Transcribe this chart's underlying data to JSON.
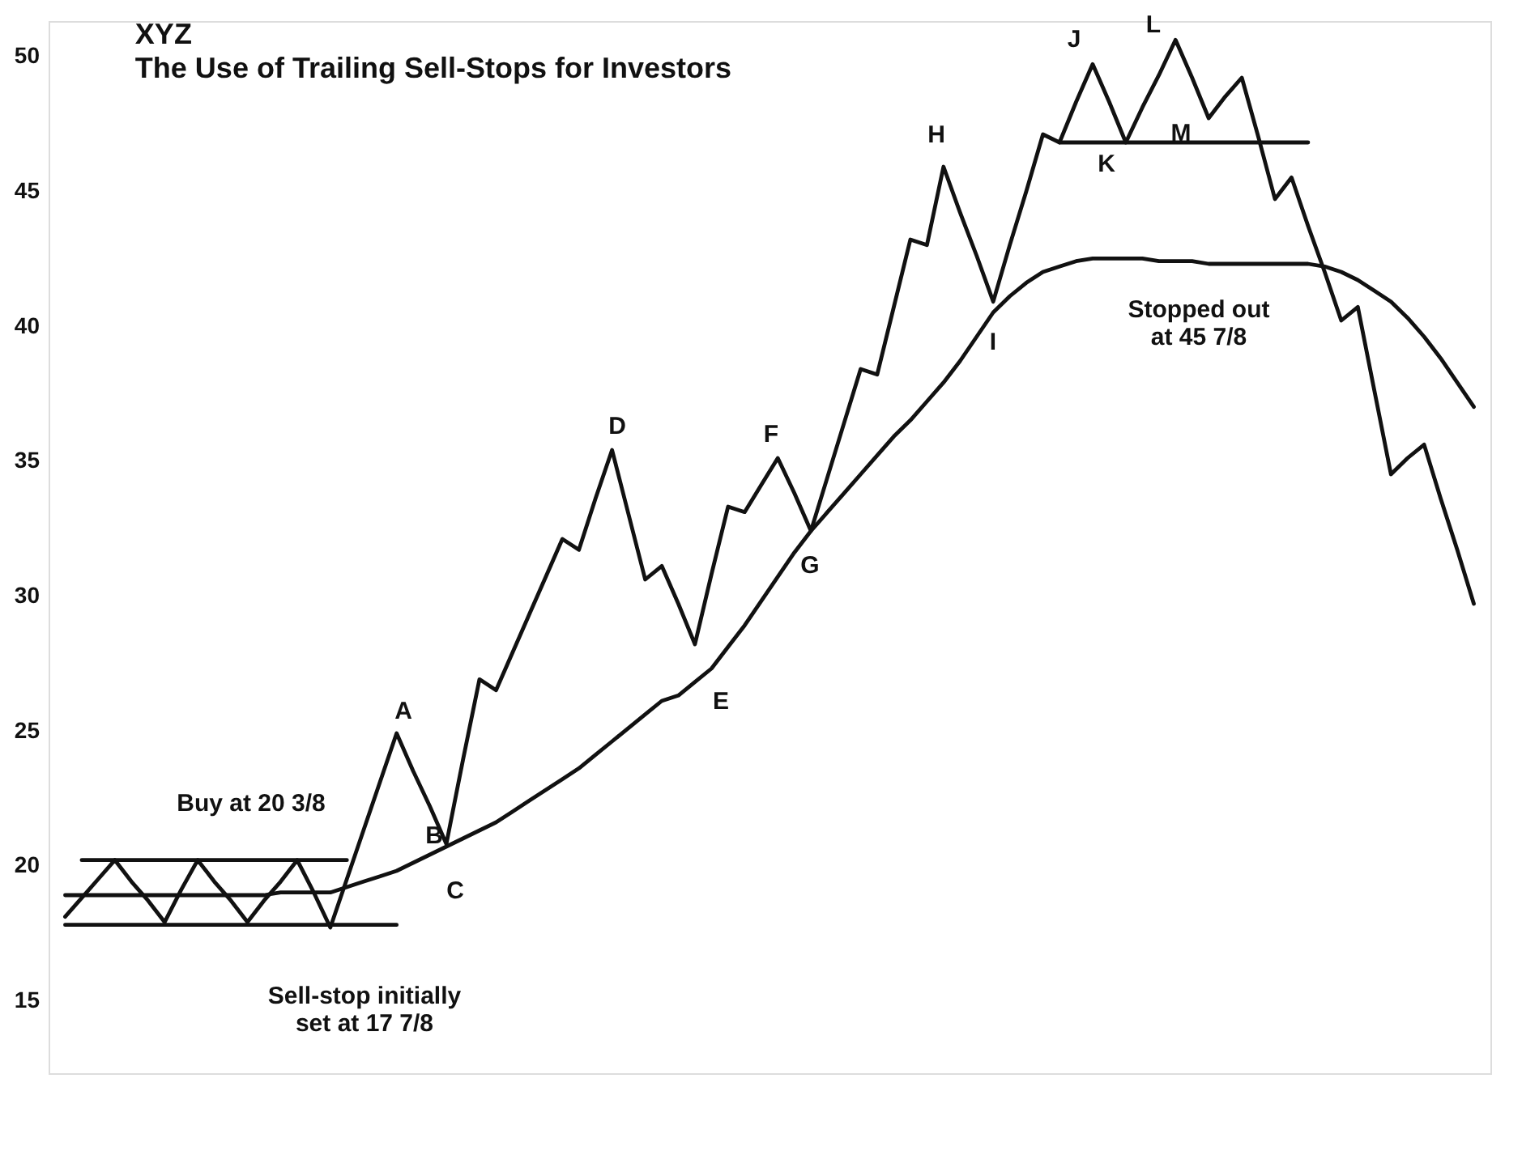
{
  "chart_data": {
    "type": "line",
    "title": "XYZ",
    "subtitle": "The Use of Trailing Sell-Stops for Investors",
    "categories": [
      null,
      null,
      null,
      null,
      null,
      null,
      null,
      null,
      null,
      null,
      null,
      null,
      null,
      null,
      null,
      null,
      null,
      null,
      null,
      null,
      null,
      null,
      null,
      null,
      null,
      null,
      null,
      null,
      null,
      null,
      null,
      null,
      null,
      null,
      null,
      null,
      null,
      null,
      null,
      null,
      null,
      null,
      null,
      null,
      null,
      null,
      null,
      null,
      null,
      null,
      null,
      null,
      null,
      null,
      null,
      null,
      null,
      null,
      null,
      null,
      null,
      null,
      null,
      null,
      null,
      null,
      null,
      null,
      null,
      null,
      null,
      null,
      null,
      null,
      null,
      null,
      null,
      null,
      null,
      null,
      null,
      null,
      null,
      null,
      null,
      null
    ],
    "ylim": [
      12.3,
      51.3
    ],
    "yticks": [
      15,
      20,
      25,
      30,
      35,
      40,
      45,
      50
    ],
    "tick_labels": "y",
    "grid": false,
    "marker": "none",
    "line_style": "solid",
    "series": [
      {
        "color": "#111111",
        "values": [
          18.1,
          18.8,
          19.5,
          20.2,
          19.4,
          18.7,
          17.9,
          19.1,
          20.2,
          19.4,
          18.7,
          17.9,
          18.7,
          19.4,
          20.2,
          19.0,
          17.7,
          19.5,
          21.3,
          23.1,
          24.9,
          23.5,
          22.2,
          20.8,
          23.9,
          26.9,
          26.5,
          27.9,
          29.3,
          30.7,
          32.1,
          31.7,
          33.6,
          35.4,
          33.0,
          30.6,
          31.1,
          29.7,
          28.2,
          30.8,
          33.3,
          33.1,
          34.1,
          35.1,
          33.8,
          32.4,
          34.4,
          36.4,
          38.4,
          38.2,
          40.7,
          43.2,
          43.0,
          45.9,
          44.2,
          42.6,
          40.9,
          43.0,
          45.0,
          47.1,
          46.8,
          48.3,
          49.7,
          48.3,
          46.8,
          48.1,
          49.3,
          50.6,
          49.2,
          47.7,
          48.5,
          49.2,
          47.0,
          44.7,
          45.5,
          43.7,
          42.0,
          40.2,
          40.7,
          37.6,
          34.5,
          35.1,
          35.6,
          33.6,
          31.7,
          29.7
        ]
      },
      {
        "color": "#111111",
        "values": [
          18.9,
          18.9,
          18.9,
          18.9,
          18.9,
          18.9,
          18.9,
          18.9,
          18.9,
          18.9,
          18.9,
          18.9,
          18.9,
          19.0,
          19.0,
          19.0,
          19.0,
          19.2,
          19.4,
          19.6,
          19.8,
          20.1,
          20.4,
          20.7,
          21.0,
          21.3,
          21.6,
          22.0,
          22.4,
          22.8,
          23.2,
          23.6,
          24.1,
          24.6,
          25.1,
          25.6,
          26.1,
          26.3,
          26.8,
          27.3,
          28.1,
          28.9,
          29.8,
          30.7,
          31.6,
          32.4,
          33.1,
          33.8,
          34.5,
          35.2,
          35.9,
          36.5,
          37.2,
          37.9,
          38.7,
          39.6,
          40.5,
          41.1,
          41.6,
          42.0,
          42.2,
          42.4,
          42.5,
          42.5,
          42.5,
          42.5,
          42.4,
          42.4,
          42.4,
          42.3,
          42.3,
          42.3,
          42.3,
          42.3,
          42.3,
          42.3,
          42.2,
          42.0,
          41.7,
          41.3,
          40.9,
          40.3,
          39.6,
          38.8,
          37.9,
          37.0
        ]
      },
      {
        "color": "#111111",
        "values": [
          null,
          20.2,
          20.2,
          20.2,
          20.2,
          20.2,
          20.2,
          20.2,
          20.2,
          20.2,
          20.2,
          20.2,
          20.2,
          20.2,
          20.2,
          20.2,
          20.2,
          20.2,
          null,
          null,
          null,
          null,
          null,
          null,
          null,
          null,
          null,
          null,
          null,
          null,
          null,
          null,
          null,
          null,
          null,
          null,
          null,
          null,
          null,
          null,
          null,
          null,
          null,
          null,
          null,
          null,
          null,
          null,
          null,
          null,
          null,
          null,
          null,
          null,
          null,
          null,
          null,
          null,
          null,
          null,
          null,
          null,
          null,
          null,
          null,
          null,
          null,
          null,
          null,
          null,
          null,
          null,
          null,
          null,
          null,
          null,
          null,
          null,
          null,
          null,
          null,
          null,
          null,
          null,
          null,
          null
        ]
      },
      {
        "color": "#111111",
        "values": [
          17.8,
          17.8,
          17.8,
          17.8,
          17.8,
          17.8,
          17.8,
          17.8,
          17.8,
          17.8,
          17.8,
          17.8,
          17.8,
          17.8,
          17.8,
          17.8,
          17.8,
          17.8,
          17.8,
          17.8,
          17.8,
          null,
          null,
          null,
          null,
          null,
          null,
          null,
          null,
          null,
          null,
          null,
          null,
          null,
          null,
          null,
          null,
          null,
          null,
          null,
          null,
          null,
          null,
          null,
          null,
          null,
          null,
          null,
          null,
          null,
          null,
          null,
          null,
          null,
          null,
          null,
          null,
          null,
          null,
          null,
          null,
          null,
          null,
          null,
          null,
          null,
          null,
          null,
          null,
          null,
          null,
          null,
          null,
          null,
          null,
          null,
          null,
          null,
          null,
          null,
          null,
          null,
          null,
          null,
          null,
          null
        ]
      },
      {
        "color": "#111111",
        "values": [
          null,
          null,
          null,
          null,
          null,
          null,
          null,
          null,
          null,
          null,
          null,
          null,
          null,
          null,
          null,
          null,
          null,
          null,
          null,
          null,
          null,
          null,
          null,
          null,
          null,
          null,
          null,
          null,
          null,
          null,
          null,
          null,
          null,
          null,
          null,
          null,
          null,
          null,
          null,
          null,
          null,
          null,
          null,
          null,
          null,
          null,
          null,
          null,
          null,
          null,
          null,
          null,
          null,
          null,
          null,
          null,
          null,
          null,
          null,
          null,
          46.8,
          46.8,
          46.8,
          46.8,
          46.8,
          46.8,
          46.8,
          46.8,
          46.8,
          46.8,
          46.8,
          46.8,
          46.8,
          46.8,
          46.8,
          46.8,
          null,
          null,
          null,
          null,
          null,
          null,
          null,
          null,
          null,
          null
        ]
      }
    ],
    "annotations": [
      "A",
      "B",
      "C",
      "D",
      "E",
      "F",
      "G",
      "H",
      "I",
      "J",
      "K",
      "L",
      "M",
      "Buy at 20 3/8",
      "Sell-stop initially\nset at 17 7/8",
      "Stopped out\nat 45 7/8"
    ]
  }
}
